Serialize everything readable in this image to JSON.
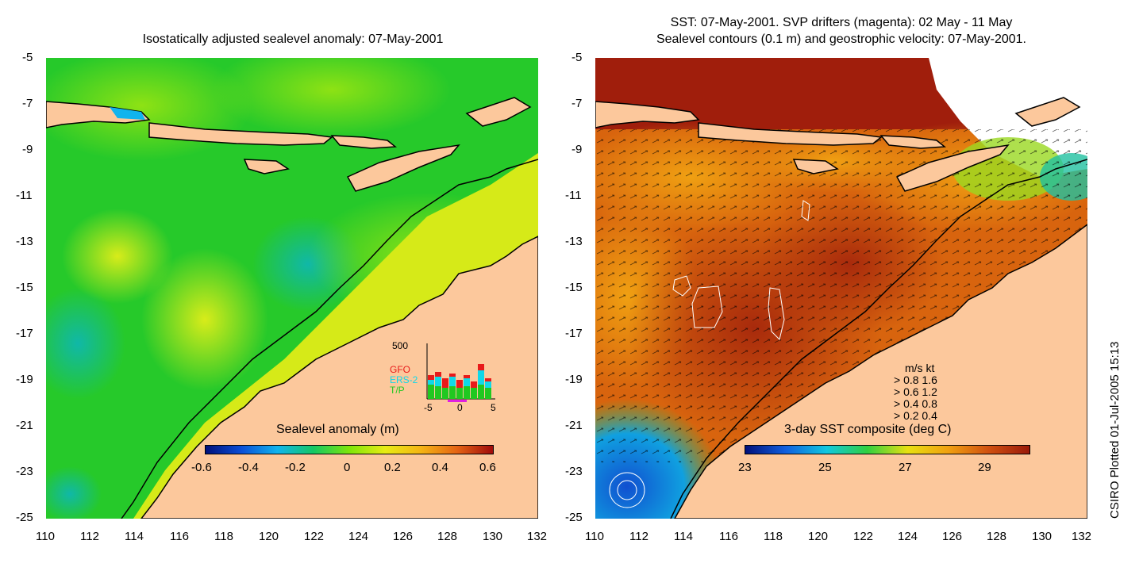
{
  "left_panel": {
    "title": "Isostatically adjusted sealevel anomaly: 07-May-2001",
    "colorbar": {
      "label": "Sealevel anomaly (m)",
      "ticks": [
        "-0.6",
        "-0.4",
        "-0.2",
        "0",
        "0.2",
        "0.4",
        "0.6"
      ],
      "stops": [
        "#00107a",
        "#0a4fd8",
        "#10b4ee",
        "#14c864",
        "#7ee60a",
        "#e8ec14",
        "#f4b414",
        "#e46414",
        "#a00a0a"
      ]
    },
    "inset": {
      "ylabel": "500",
      "legend": [
        "GFO",
        "ERS-2",
        "T/P"
      ],
      "legend_colors": [
        "#e81a1a",
        "#10d8e8",
        "#20c820"
      ],
      "xticks": [
        "-5",
        "0",
        "5"
      ]
    }
  },
  "right_panel": {
    "title_line1": "SST: 07-May-2001. SVP drifters (magenta): 02 May - 11 May",
    "title_line2": "Sealevel contours (0.1 m) and geostrophic velocity: 07-May-2001.",
    "colorbar": {
      "label": "3-day SST composite (deg C)",
      "ticks": [
        "23",
        "25",
        "27",
        "29"
      ],
      "stops": [
        "#00107a",
        "#1060e0",
        "#10c8e0",
        "#30d040",
        "#e8e010",
        "#f0a010",
        "#d05010",
        "#9a1a0a"
      ]
    },
    "vector_key": {
      "header": "m/s  kt",
      "rows": [
        "0.8  1.6",
        "0.6  1.2",
        "0.4  0.8",
        "0.2  0.4"
      ]
    }
  },
  "axes": {
    "y_ticks": [
      "-5",
      "-7",
      "-9",
      "-11",
      "-13",
      "-15",
      "-17",
      "-19",
      "-21",
      "-23",
      "-25"
    ],
    "x_ticks": [
      "110",
      "112",
      "114",
      "116",
      "118",
      "120",
      "122",
      "124",
      "126",
      "128",
      "130",
      "132"
    ]
  },
  "credit": "CSIRO Plotted 01-Jul-2005 15:13",
  "colors": {
    "land": "#fcc89c",
    "sea_left": "#22cc22",
    "sst_warm": "#c8520e"
  }
}
